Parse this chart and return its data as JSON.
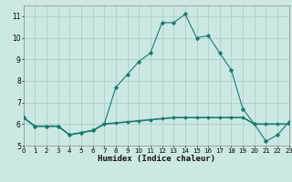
{
  "title": "",
  "xlabel": "Humidex (Indice chaleur)",
  "bg_color": "#cce8e4",
  "line_color": "#1a7a6e",
  "grid_color": "#aacfcc",
  "x_data": [
    0,
    1,
    2,
    3,
    4,
    5,
    6,
    7,
    8,
    9,
    10,
    11,
    12,
    13,
    14,
    15,
    16,
    17,
    18,
    19,
    20,
    21,
    22,
    23
  ],
  "line1_y": [
    6.3,
    5.9,
    5.9,
    5.9,
    5.5,
    5.6,
    5.7,
    6.0,
    7.7,
    8.3,
    8.9,
    9.3,
    10.7,
    10.7,
    11.1,
    10.0,
    10.1,
    9.3,
    8.5,
    6.7,
    6.0,
    5.2,
    5.5,
    6.1
  ],
  "line2_y": [
    6.3,
    5.9,
    5.9,
    5.9,
    5.5,
    5.6,
    5.7,
    6.0,
    6.05,
    6.1,
    6.15,
    6.2,
    6.25,
    6.3,
    6.3,
    6.3,
    6.3,
    6.3,
    6.3,
    6.3,
    6.0,
    6.0,
    6.0,
    6.0
  ],
  "xlim": [
    0,
    23
  ],
  "ylim": [
    5.0,
    11.5
  ],
  "yticks": [
    5,
    6,
    7,
    8,
    9,
    10,
    11
  ],
  "xticks": [
    0,
    1,
    2,
    3,
    4,
    5,
    6,
    7,
    8,
    9,
    10,
    11,
    12,
    13,
    14,
    15,
    16,
    17,
    18,
    19,
    20,
    21,
    22,
    23
  ]
}
